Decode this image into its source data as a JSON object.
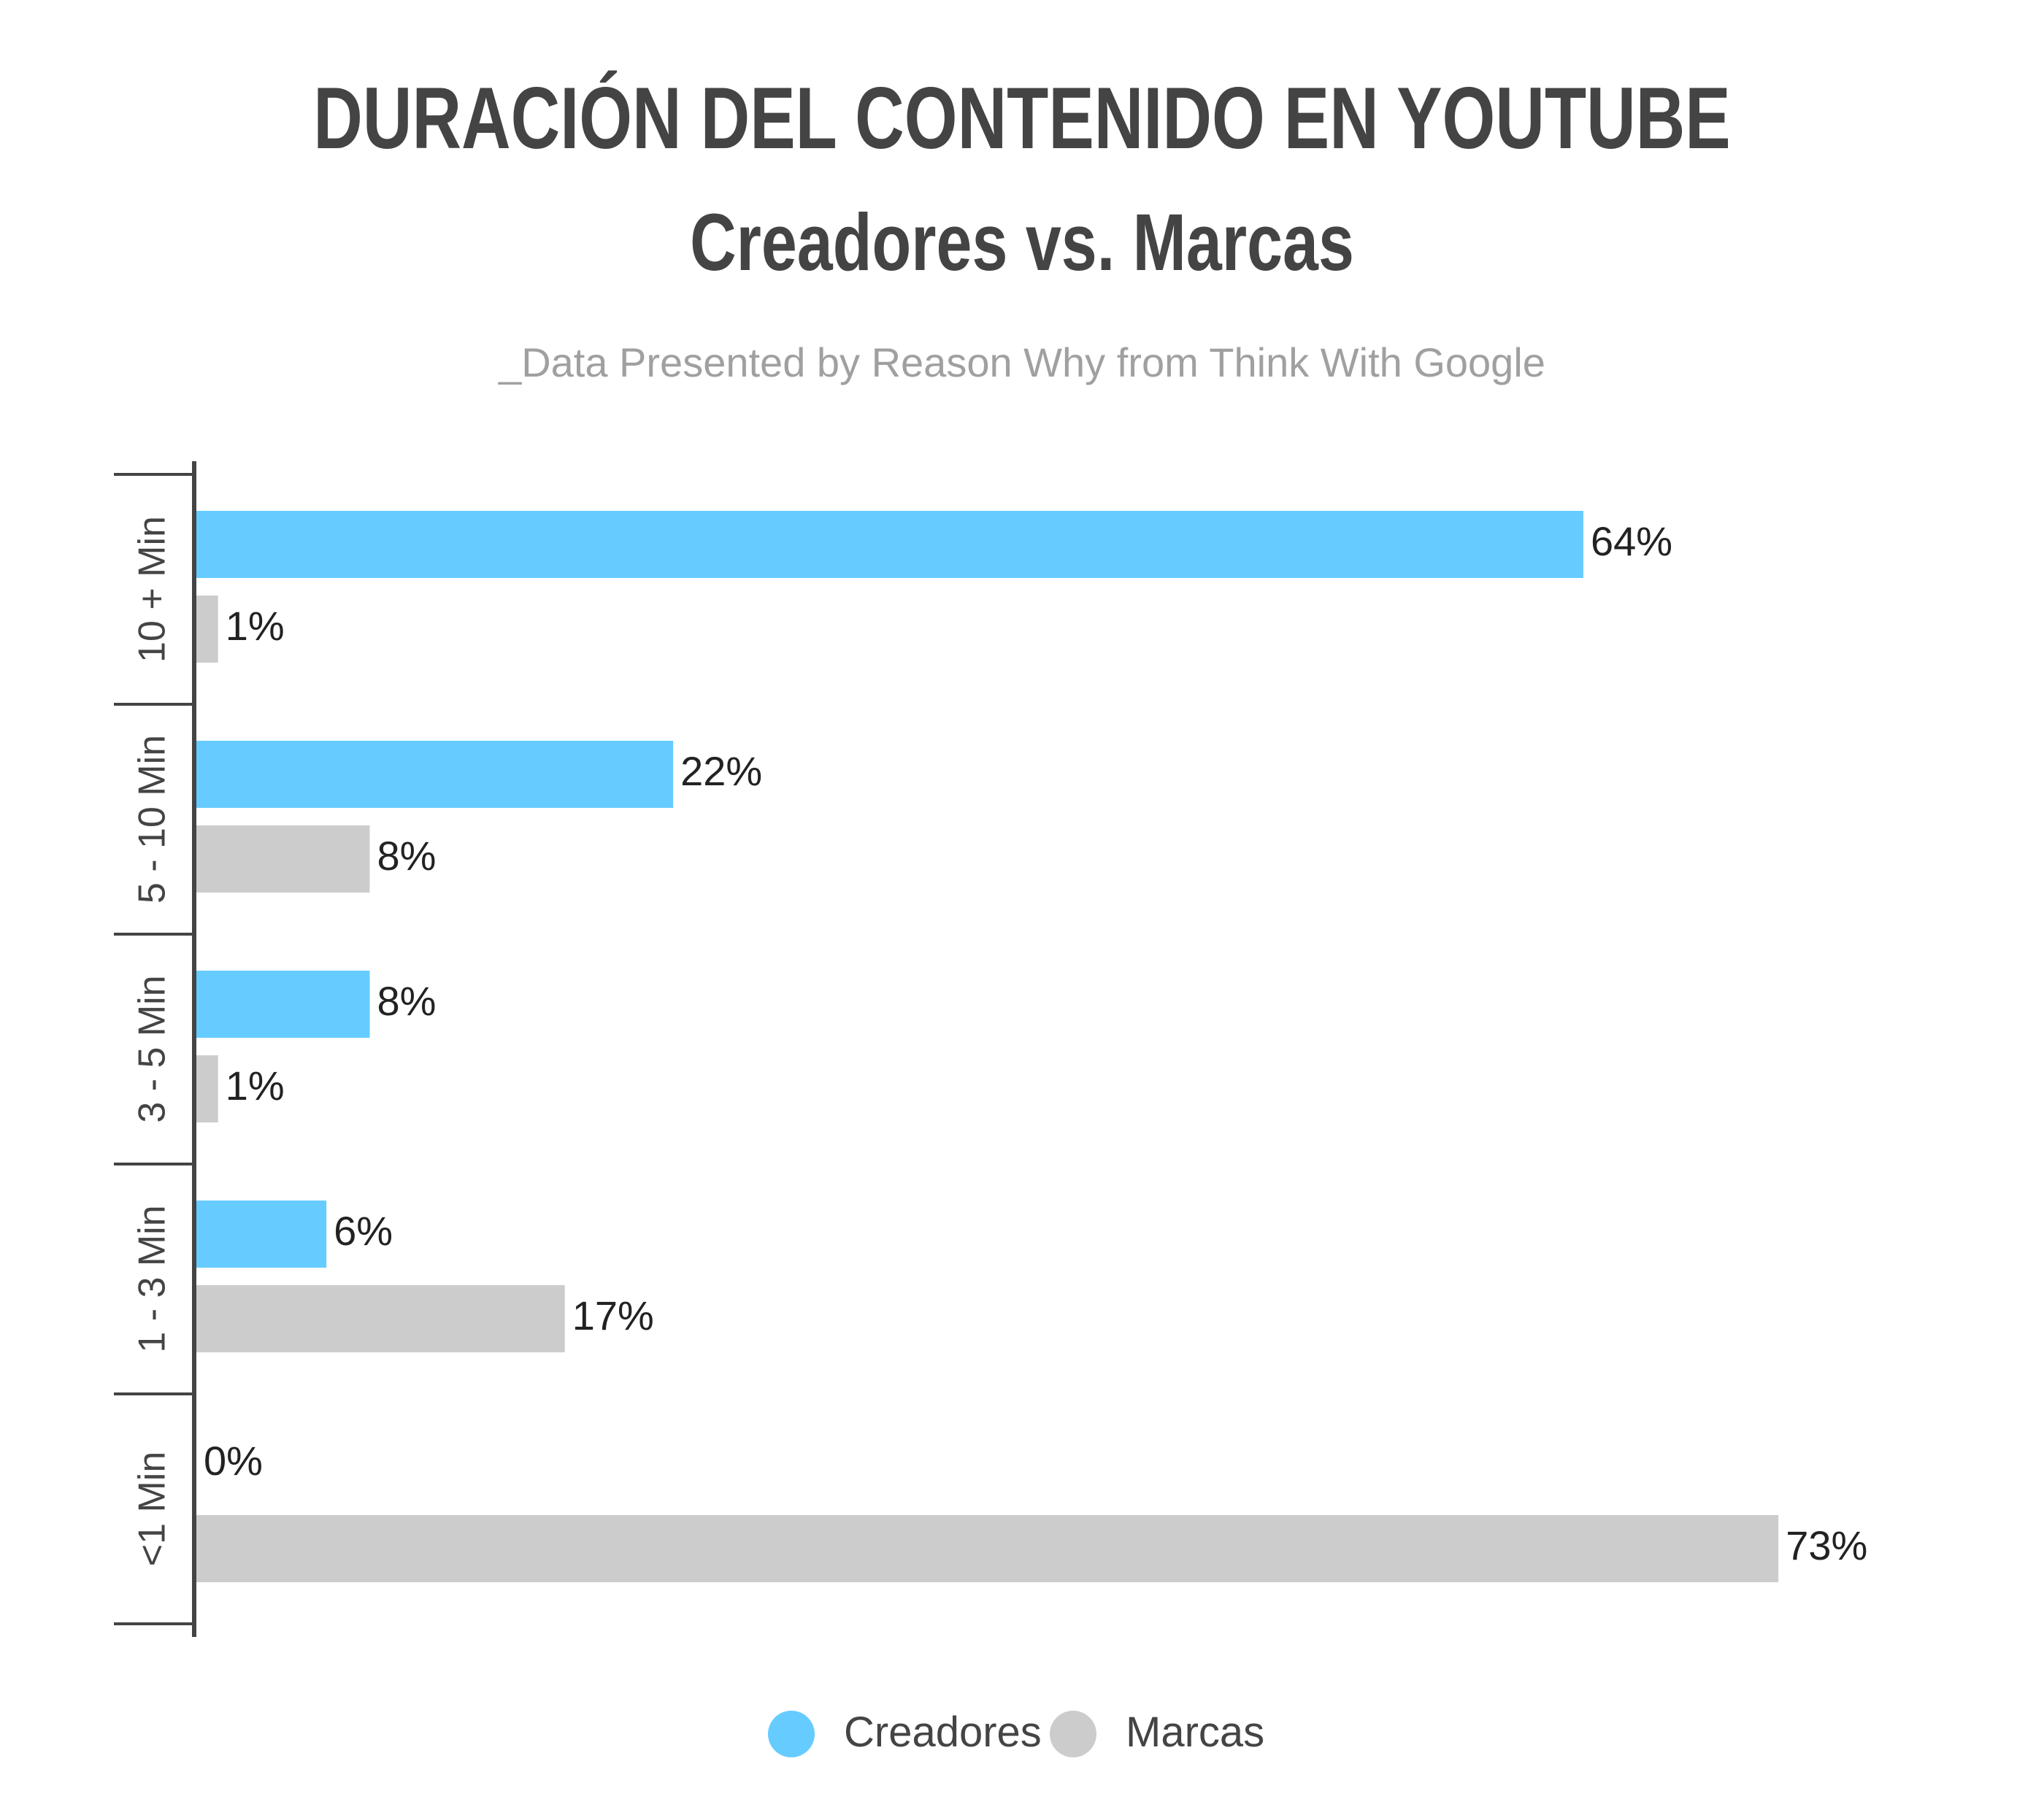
{
  "title": "DURACIÓN DEL CONTENIDO EN YOUTUBE",
  "subtitle": "Creadores vs. Marcas",
  "source": "_Data Presented by Reason Why from Think With Google",
  "colors": {
    "creadores": "#66CCFF",
    "marcas": "#CCCCCC",
    "axis": "#444444",
    "text": "#222222"
  },
  "chart_data": {
    "type": "bar",
    "orientation": "horizontal",
    "title": "DURACIÓN DEL CONTENIDO EN YOUTUBE",
    "subtitle": "Creadores vs. Marcas",
    "categories": [
      "10 + Min",
      "5 - 10 Min",
      "3 - 5 Min",
      "1 - 3 Min",
      "<1 Min"
    ],
    "series": [
      {
        "name": "Creadores",
        "values": [
          64,
          22,
          8,
          6,
          0
        ],
        "labels": [
          "64%",
          "22%",
          "8%",
          "6%",
          "0%"
        ]
      },
      {
        "name": "Marcas",
        "values": [
          1,
          8,
          1,
          17,
          73
        ],
        "labels": [
          "1%",
          "8%",
          "1%",
          "17%",
          "73%"
        ]
      }
    ],
    "xlim": [
      0,
      75
    ],
    "grid": false,
    "legend_position": "bottom"
  },
  "legend": [
    {
      "name": "Creadores"
    },
    {
      "name": "Marcas"
    }
  ]
}
